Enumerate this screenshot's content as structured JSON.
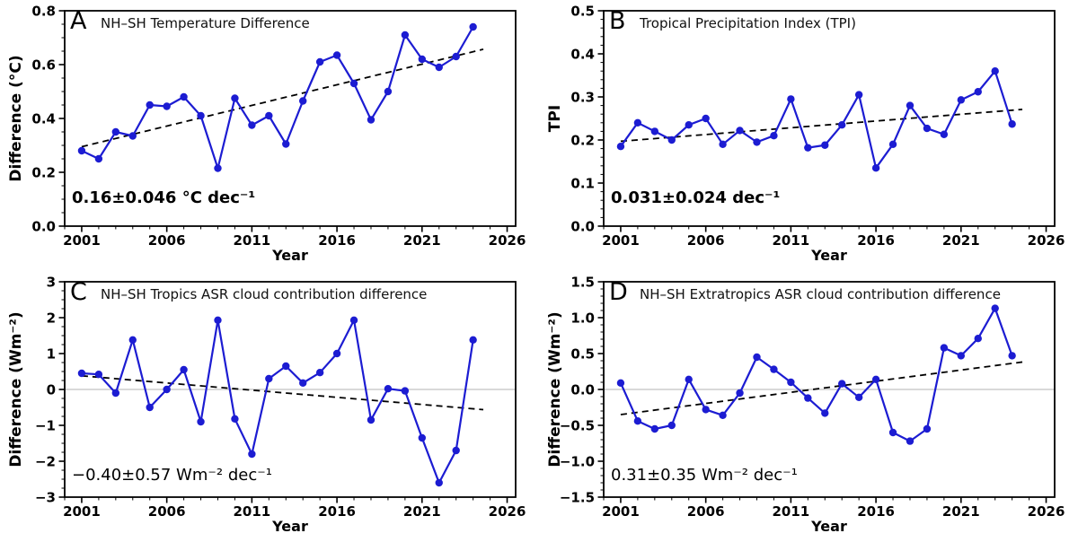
{
  "figure": {
    "background": "#ffffff",
    "line_color": "#1c1cd2",
    "marker_color": "#1c1cd2",
    "trend_color": "#000000",
    "zero_line_color": "#b3b3b3",
    "frame_color": "#000000"
  },
  "chart_data": [
    {
      "type": "line",
      "panel_label": "A",
      "title": "NH–SH Temperature Difference",
      "xlabel": "Year",
      "ylabel": "Difference (°C)",
      "annotation": "0.16±0.046 °C dec⁻¹",
      "x": [
        2001,
        2002,
        2003,
        2004,
        2005,
        2006,
        2007,
        2008,
        2009,
        2010,
        2011,
        2012,
        2013,
        2014,
        2015,
        2016,
        2017,
        2018,
        2019,
        2020,
        2021,
        2022,
        2023,
        2024
      ],
      "values": [
        0.28,
        0.25,
        0.35,
        0.335,
        0.45,
        0.445,
        0.48,
        0.41,
        0.215,
        0.475,
        0.375,
        0.41,
        0.305,
        0.465,
        0.61,
        0.635,
        0.53,
        0.395,
        0.5,
        0.71,
        0.62,
        0.59,
        0.63,
        0.74
      ],
      "trend": {
        "x": [
          2001,
          2024.6
        ],
        "y": [
          0.295,
          0.657
        ]
      },
      "xlim": [
        2000,
        2026.5
      ],
      "ylim": [
        0,
        0.8
      ],
      "xticks": [
        2001,
        2006,
        2011,
        2016,
        2021,
        2026
      ],
      "xtick_labels": [
        "2001",
        "2006",
        "2011",
        "2016",
        "2021",
        "2026"
      ],
      "x_minor_step": 1,
      "yticks": [
        0,
        0.2,
        0.4,
        0.6,
        0.8
      ],
      "ytick_labels": [
        "0.0",
        "0.2",
        "0.4",
        "0.6",
        "0.8"
      ],
      "y_minor_step": 0.05,
      "zero_line": false,
      "grid": false,
      "legend": null
    },
    {
      "type": "line",
      "panel_label": "B",
      "title": "Tropical Precipitation Index (TPI)",
      "xlabel": "Year",
      "ylabel": "TPI",
      "annotation": "0.031±0.024 dec⁻¹",
      "x": [
        2001,
        2002,
        2003,
        2004,
        2005,
        2006,
        2007,
        2008,
        2009,
        2010,
        2011,
        2012,
        2013,
        2014,
        2015,
        2016,
        2017,
        2018,
        2019,
        2020,
        2021,
        2022,
        2023,
        2024
      ],
      "values": [
        0.185,
        0.24,
        0.22,
        0.2,
        0.235,
        0.25,
        0.19,
        0.222,
        0.195,
        0.21,
        0.295,
        0.182,
        0.188,
        0.235,
        0.305,
        0.135,
        0.19,
        0.28,
        0.227,
        0.213,
        0.293,
        0.312,
        0.36,
        0.237
      ],
      "trend": {
        "x": [
          2001,
          2024.6
        ],
        "y": [
          0.197,
          0.271
        ]
      },
      "xlim": [
        2000,
        2026.5
      ],
      "ylim": [
        0,
        0.5
      ],
      "xticks": [
        2001,
        2006,
        2011,
        2016,
        2021,
        2026
      ],
      "xtick_labels": [
        "2001",
        "2006",
        "2011",
        "2016",
        "2021",
        "2026"
      ],
      "x_minor_step": 1,
      "yticks": [
        0,
        0.1,
        0.2,
        0.3,
        0.4,
        0.5
      ],
      "ytick_labels": [
        "0.0",
        "0.1",
        "0.2",
        "0.3",
        "0.4",
        "0.5"
      ],
      "y_minor_step": 0.02,
      "zero_line": false,
      "grid": false,
      "legend": null
    },
    {
      "type": "line",
      "panel_label": "C",
      "title": "NH–SH Tropics ASR cloud contribution difference",
      "xlabel": "Year",
      "ylabel": "Difference (Wm⁻²)",
      "annotation": "−0.40±0.57 Wm⁻² dec⁻¹",
      "x": [
        2001,
        2002,
        2003,
        2004,
        2005,
        2006,
        2007,
        2008,
        2009,
        2010,
        2011,
        2012,
        2013,
        2014,
        2015,
        2016,
        2017,
        2018,
        2019,
        2020,
        2021,
        2022,
        2023,
        2024
      ],
      "values": [
        0.45,
        0.42,
        -0.1,
        1.38,
        -0.5,
        0.0,
        0.55,
        -0.9,
        1.93,
        -0.82,
        -1.8,
        0.3,
        0.65,
        0.18,
        0.47,
        1.0,
        1.93,
        -0.85,
        0.02,
        -0.04,
        -1.35,
        -2.6,
        -1.7,
        1.38
      ],
      "trend": {
        "x": [
          2001,
          2024.6
        ],
        "y": [
          0.38,
          -0.563
        ]
      },
      "xlim": [
        2000,
        2026.5
      ],
      "ylim": [
        -3,
        3
      ],
      "xticks": [
        2001,
        2006,
        2011,
        2016,
        2021,
        2026
      ],
      "xtick_labels": [
        "2001",
        "2006",
        "2011",
        "2016",
        "2021",
        "2026"
      ],
      "x_minor_step": 1,
      "yticks": [
        -3,
        -2,
        -1,
        0,
        1,
        2,
        3
      ],
      "ytick_labels": [
        "−3",
        "−2",
        "−1",
        "0",
        "1",
        "2",
        "3"
      ],
      "y_minor_step": 0.25,
      "zero_line": true,
      "grid": false,
      "legend": null
    },
    {
      "type": "line",
      "panel_label": "D",
      "title": "NH–SH Extratropics ASR cloud contribution difference",
      "xlabel": "Year",
      "ylabel": "Difference (Wm⁻²)",
      "annotation": "0.31±0.35 Wm⁻² dec⁻¹",
      "x": [
        2001,
        2002,
        2003,
        2004,
        2005,
        2006,
        2007,
        2008,
        2009,
        2010,
        2011,
        2012,
        2013,
        2014,
        2015,
        2016,
        2017,
        2018,
        2019,
        2020,
        2021,
        2022,
        2023,
        2024
      ],
      "values": [
        0.09,
        -0.44,
        -0.55,
        -0.5,
        0.14,
        -0.28,
        -0.36,
        -0.05,
        0.45,
        0.28,
        0.1,
        -0.12,
        -0.33,
        0.08,
        -0.11,
        0.14,
        -0.6,
        -0.72,
        -0.55,
        0.58,
        0.47,
        0.71,
        1.13,
        0.47
      ],
      "trend": {
        "x": [
          2001,
          2024.6
        ],
        "y": [
          -0.35,
          0.382
        ]
      },
      "xlim": [
        2000,
        2026.5
      ],
      "ylim": [
        -1.5,
        1.5
      ],
      "xticks": [
        2001,
        2006,
        2011,
        2016,
        2021,
        2026
      ],
      "xtick_labels": [
        "2001",
        "2006",
        "2011",
        "2016",
        "2021",
        "2026"
      ],
      "x_minor_step": 1,
      "yticks": [
        -1.5,
        -1.0,
        -0.5,
        0,
        0.5,
        1.0,
        1.5
      ],
      "ytick_labels": [
        "−1.5",
        "−1.0",
        "−0.5",
        "0.0",
        "0.5",
        "1.0",
        "1.5"
      ],
      "y_minor_step": 0.1,
      "zero_line": true,
      "grid": false,
      "legend": null
    }
  ]
}
